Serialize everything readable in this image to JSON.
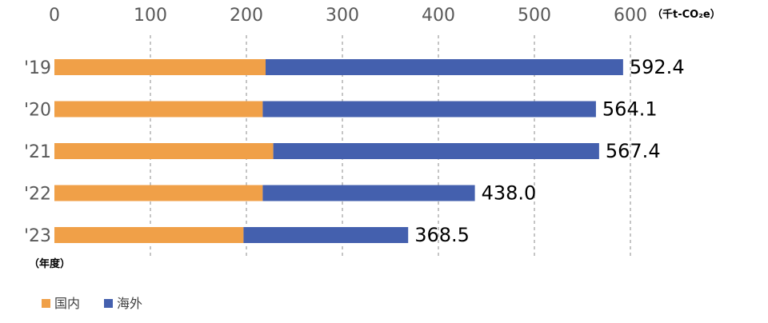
{
  "chart_data": {
    "type": "bar",
    "orientation": "horizontal",
    "stacked": true,
    "categories": [
      "'19",
      "'20",
      "'21",
      "'22",
      "'23"
    ],
    "series": [
      {
        "name": "国内",
        "color": "#f0a048",
        "values": [
          220,
          217,
          228,
          217,
          197
        ]
      },
      {
        "name": "海外",
        "color": "#4460ae",
        "values": [
          372.4,
          347.1,
          339.4,
          221.0,
          171.5
        ]
      }
    ],
    "totals": [
      "592.4",
      "564.1",
      "567.4",
      "438.0",
      "368.5"
    ],
    "x_ticks": [
      "0",
      "100",
      "200",
      "300",
      "400",
      "500",
      "600"
    ],
    "xlim": [
      0,
      600
    ],
    "unit_label": "（千t-CO₂e）",
    "y_axis_title": "（年度）",
    "grid": true,
    "axis_position": "top",
    "legend_position": "bottom-left"
  }
}
